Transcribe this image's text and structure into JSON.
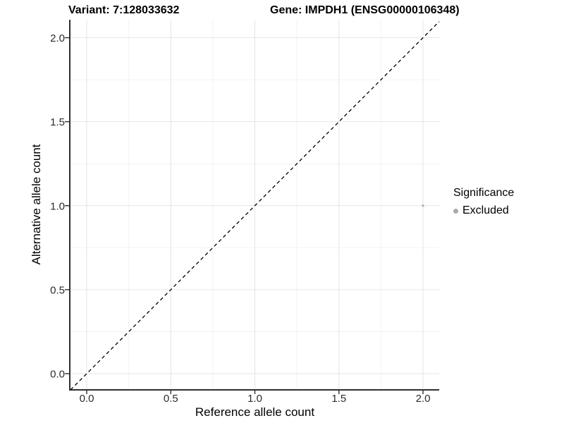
{
  "titles": {
    "variant": "Variant: 7:128033632",
    "gene": "Gene: IMPDH1 (ENSG00000106348)"
  },
  "chart_data": {
    "type": "scatter",
    "title_left": "Variant: 7:128033632",
    "title_right": "Gene: IMPDH1 (ENSG00000106348)",
    "xlabel": "Reference allele count",
    "ylabel": "Alternative allele count",
    "xlim": [
      -0.096,
      2.096
    ],
    "ylim": [
      -0.096,
      2.096
    ],
    "x_ticks": [
      0.0,
      0.5,
      1.0,
      1.5,
      2.0
    ],
    "y_ticks": [
      0.0,
      0.5,
      1.0,
      1.5,
      2.0
    ],
    "x_tick_labels": [
      "0.0",
      "0.5",
      "1.0",
      "1.5",
      "2.0"
    ],
    "y_tick_labels": [
      "0.0",
      "0.5",
      "1.0",
      "1.5",
      "2.0"
    ],
    "x_minor_ticks": [
      0.25,
      0.75,
      1.25,
      1.75
    ],
    "y_minor_ticks": [
      0.25,
      0.75,
      1.25,
      1.75
    ],
    "grid": true,
    "reference_line": {
      "type": "abline",
      "slope": 1,
      "intercept": 0,
      "style": "dashed",
      "x1": -0.096,
      "y1": -0.096,
      "x2": 2.096,
      "y2": 2.096,
      "color": "#000000"
    },
    "series": [
      {
        "name": "Excluded",
        "color": "#b5b5b5",
        "point_radius": 1.7,
        "points": [
          {
            "x": 2.0,
            "y": 1.0
          }
        ]
      }
    ],
    "legend": {
      "title": "Significance",
      "position": "right",
      "entries": [
        {
          "label": "Excluded",
          "color": "#a9a9a9"
        }
      ]
    },
    "colors": {
      "grid_major": "#e6e6e6",
      "grid_minor": "#f2f2f2",
      "axis_line": "#2f2f2f",
      "tick_mark": "#2f2f2f",
      "tick_label": "#2b2b2b"
    }
  }
}
